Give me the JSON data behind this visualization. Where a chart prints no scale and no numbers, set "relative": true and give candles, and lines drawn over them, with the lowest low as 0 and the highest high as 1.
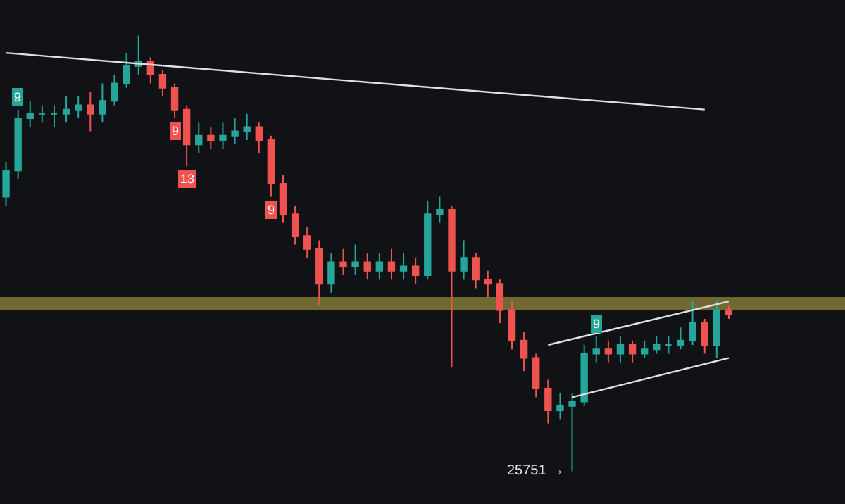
{
  "chart_data": {
    "type": "candlestick",
    "relative": true,
    "categories": [
      null,
      null,
      null,
      null,
      null,
      null,
      null,
      null,
      null,
      null,
      null,
      null,
      null,
      null,
      null,
      null,
      null,
      null,
      null,
      null,
      null,
      null,
      null,
      null,
      null,
      null,
      null,
      null,
      null,
      null,
      null,
      null,
      null,
      null,
      null,
      null,
      null,
      null,
      null,
      null,
      null,
      null,
      null,
      null,
      null,
      null,
      null,
      null,
      null,
      null,
      null,
      null,
      null,
      null,
      null,
      null,
      null,
      null,
      null,
      null,
      null
    ],
    "ohlc": [
      [
        0.63,
        0.71,
        0.61,
        0.69
      ],
      [
        0.69,
        0.83,
        0.67,
        0.81
      ],
      [
        0.81,
        0.85,
        0.79,
        0.82
      ],
      [
        0.82,
        0.84,
        0.8,
        0.82
      ],
      [
        0.82,
        0.84,
        0.79,
        0.82
      ],
      [
        0.82,
        0.86,
        0.8,
        0.83
      ],
      [
        0.83,
        0.86,
        0.81,
        0.84
      ],
      [
        0.84,
        0.87,
        0.78,
        0.82
      ],
      [
        0.82,
        0.89,
        0.8,
        0.85
      ],
      [
        0.85,
        0.91,
        0.84,
        0.89
      ],
      [
        0.89,
        0.96,
        0.88,
        0.93
      ],
      [
        0.93,
        1,
        0.91,
        0.94
      ],
      [
        0.94,
        0.95,
        0.89,
        0.91
      ],
      [
        0.91,
        0.92,
        0.86,
        0.88
      ],
      [
        0.88,
        0.89,
        0.81,
        0.83
      ],
      [
        0.83,
        0.84,
        0.7,
        0.75
      ],
      [
        0.75,
        0.8,
        0.73,
        0.77
      ],
      [
        0.77,
        0.79,
        0.74,
        0.76
      ],
      [
        0.76,
        0.8,
        0.74,
        0.77
      ],
      [
        0.77,
        0.81,
        0.75,
        0.78
      ],
      [
        0.78,
        0.82,
        0.76,
        0.79
      ],
      [
        0.79,
        0.8,
        0.73,
        0.76
      ],
      [
        0.76,
        0.77,
        0.63,
        0.66
      ],
      [
        0.66,
        0.68,
        0.57,
        0.59
      ],
      [
        0.59,
        0.61,
        0.52,
        0.54
      ],
      [
        0.54,
        0.56,
        0.49,
        0.51
      ],
      [
        0.51,
        0.53,
        0.38,
        0.43
      ],
      [
        0.43,
        0.5,
        0.41,
        0.48
      ],
      [
        0.48,
        0.51,
        0.45,
        0.47
      ],
      [
        0.47,
        0.52,
        0.45,
        0.48
      ],
      [
        0.48,
        0.5,
        0.44,
        0.46
      ],
      [
        0.46,
        0.5,
        0.44,
        0.48
      ],
      [
        0.48,
        0.51,
        0.44,
        0.46
      ],
      [
        0.46,
        0.5,
        0.44,
        0.47
      ],
      [
        0.47,
        0.49,
        0.43,
        0.45
      ],
      [
        0.45,
        0.62,
        0.44,
        0.59
      ],
      [
        0.59,
        0.63,
        0.57,
        0.6
      ],
      [
        0.6,
        0.61,
        0.24,
        0.46
      ],
      [
        0.46,
        0.53,
        0.44,
        0.49
      ],
      [
        0.49,
        0.5,
        0.42,
        0.44
      ],
      [
        0.44,
        0.46,
        0.4,
        0.43
      ],
      [
        0.43,
        0.44,
        0.34,
        0.37
      ],
      [
        0.37,
        0.39,
        0.28,
        0.3
      ],
      [
        0.3,
        0.32,
        0.23,
        0.26
      ],
      [
        0.26,
        0.27,
        0.17,
        0.19
      ],
      [
        0.19,
        0.21,
        0.11,
        0.14
      ],
      [
        0.14,
        0.18,
        0.12,
        0.15
      ],
      [
        0.15,
        0.18,
        0,
        0.16
      ],
      [
        0.16,
        0.29,
        0.15,
        0.27
      ],
      [
        0.27,
        0.31,
        0.25,
        0.28
      ],
      [
        0.28,
        0.3,
        0.25,
        0.27
      ],
      [
        0.27,
        0.31,
        0.25,
        0.29
      ],
      [
        0.29,
        0.3,
        0.25,
        0.27
      ],
      [
        0.27,
        0.3,
        0.26,
        0.28
      ],
      [
        0.28,
        0.31,
        0.27,
        0.29
      ],
      [
        0.29,
        0.31,
        0.27,
        0.29
      ],
      [
        0.29,
        0.33,
        0.28,
        0.3
      ],
      [
        0.3,
        0.39,
        0.29,
        0.34
      ],
      [
        0.34,
        0.35,
        0.27,
        0.29
      ],
      [
        0.29,
        0.39,
        0.26,
        0.37
      ],
      [
        0.37,
        0.38,
        0.35,
        0.36
      ]
    ],
    "value_labels": [
      null,
      "9",
      null,
      null,
      null,
      null,
      null,
      null,
      null,
      null,
      null,
      null,
      null,
      null,
      "9",
      "13",
      null,
      null,
      null,
      null,
      null,
      null,
      "9",
      null,
      null,
      null,
      null,
      null,
      null,
      null,
      null,
      null,
      null,
      null,
      null,
      null,
      null,
      null,
      null,
      null,
      null,
      null,
      null,
      null,
      null,
      null,
      null,
      "25751 →",
      null,
      "9",
      null,
      null,
      null,
      null,
      null,
      null,
      null,
      null,
      null,
      null,
      null
    ],
    "series": [
      {
        "type": "line",
        "color": "#e0e0e0",
        "values": [
          0.96,
          null,
          null,
          null,
          null,
          null,
          null,
          null,
          null,
          null,
          null,
          null,
          null,
          null,
          null,
          null,
          null,
          null,
          null,
          null,
          null,
          null,
          null,
          null,
          null,
          null,
          null,
          null,
          null,
          null,
          null,
          null,
          null,
          null,
          null,
          null,
          null,
          null,
          null,
          null,
          null,
          null,
          null,
          null,
          null,
          null,
          null,
          null,
          null,
          null,
          null,
          null,
          null,
          null,
          null,
          null,
          null,
          null,
          0.83,
          null,
          null
        ]
      },
      {
        "type": "line",
        "color": "#e0e0e0",
        "values": [
          null,
          null,
          null,
          null,
          null,
          null,
          null,
          null,
          null,
          null,
          null,
          null,
          null,
          null,
          null,
          null,
          null,
          null,
          null,
          null,
          null,
          null,
          null,
          null,
          null,
          null,
          null,
          null,
          null,
          null,
          null,
          null,
          null,
          null,
          null,
          null,
          null,
          null,
          null,
          null,
          null,
          null,
          null,
          null,
          null,
          0.29,
          null,
          null,
          null,
          null,
          null,
          null,
          null,
          null,
          null,
          null,
          null,
          null,
          null,
          null,
          0.39
        ]
      },
      {
        "type": "line",
        "color": "#e0e0e0",
        "values": [
          null,
          null,
          null,
          null,
          null,
          null,
          null,
          null,
          null,
          null,
          null,
          null,
          null,
          null,
          null,
          null,
          null,
          null,
          null,
          null,
          null,
          null,
          null,
          null,
          null,
          null,
          null,
          null,
          null,
          null,
          null,
          null,
          null,
          null,
          null,
          null,
          null,
          null,
          null,
          null,
          null,
          null,
          null,
          null,
          null,
          null,
          null,
          0.17,
          null,
          null,
          null,
          null,
          null,
          null,
          null,
          null,
          null,
          null,
          null,
          null,
          0.26
        ]
      }
    ],
    "bands": [
      {
        "axis": "y",
        "from": 0.37,
        "to": 0.4,
        "color": "#8a7f3a"
      }
    ]
  }
}
